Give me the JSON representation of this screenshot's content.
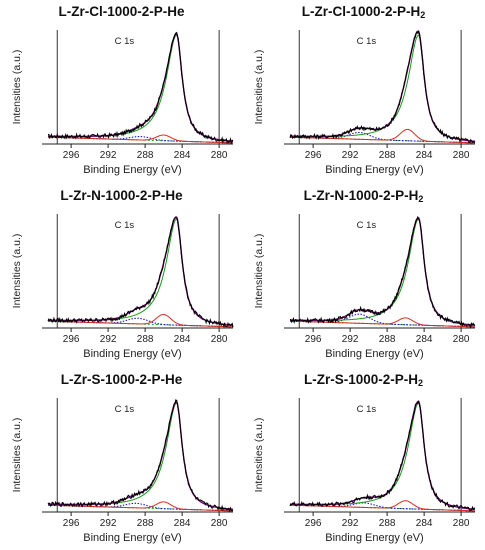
{
  "chart_data": [
    {
      "type": "line",
      "title_main": "L-Zr-Cl-1000-2-P-He",
      "title_sub": "",
      "peak_label": "C 1s",
      "xlabel": "Binding Energy (eV)",
      "ylabel": "Intensities (a.u.)",
      "xticks": [
        296,
        292,
        288,
        284,
        280
      ],
      "xlim": [
        298.5,
        278.5
      ],
      "x_reversed": true,
      "vlines": [
        297.5,
        280
      ],
      "main_peak": {
        "center": 284.6,
        "height": 0.93
      },
      "satellite_peak": {
        "center": 288.5,
        "height": 0.03
      },
      "shoulder_peak": {
        "center": 286.0,
        "height": 0.05
      },
      "background_level": 0.05,
      "series": [
        {
          "name": "",
          "color": "#000000"
        },
        {
          "name": "",
          "color": "#800080"
        },
        {
          "name": "",
          "color": "#d62d20"
        },
        {
          "name": "",
          "color": "#1a9a1a"
        },
        {
          "name": "",
          "color": "#1a1ad6"
        }
      ]
    },
    {
      "type": "line",
      "title_main": "L-Zr-Cl-1000-2-P-H",
      "title_sub": "2",
      "peak_label": "C 1s",
      "xlabel": "Binding Energy (eV)",
      "ylabel": "Intensities (a.u.)",
      "xticks": [
        296,
        292,
        288,
        284,
        280
      ],
      "xlim": [
        298.5,
        278.5
      ],
      "x_reversed": true,
      "vlines": [
        297.5,
        280
      ],
      "main_peak": {
        "center": 284.6,
        "height": 0.93
      },
      "satellite_peak": {
        "center": 291.0,
        "height": 0.06
      },
      "shoulder_peak": {
        "center": 285.8,
        "height": 0.1
      },
      "background_level": 0.05,
      "series": [
        {
          "name": "",
          "color": "#000000"
        },
        {
          "name": "",
          "color": "#800080"
        },
        {
          "name": "",
          "color": "#d62d20"
        },
        {
          "name": "",
          "color": "#1a9a1a"
        },
        {
          "name": "",
          "color": "#1a1ad6"
        }
      ]
    },
    {
      "type": "line",
      "title_main": "L-Zr-N-1000-2-P-He",
      "title_sub": "",
      "peak_label": "C 1s",
      "xlabel": "Binding Energy (eV)",
      "ylabel": "Intensities (a.u.)",
      "xticks": [
        296,
        292,
        288,
        284,
        280
      ],
      "xlim": [
        298.5,
        278.5
      ],
      "x_reversed": true,
      "vlines": [
        297.5,
        280
      ],
      "main_peak": {
        "center": 284.6,
        "height": 0.93
      },
      "satellite_peak": {
        "center": 288.8,
        "height": 0.05
      },
      "shoulder_peak": {
        "center": 286.0,
        "height": 0.09
      },
      "background_level": 0.05,
      "series": [
        {
          "name": "",
          "color": "#000000"
        },
        {
          "name": "",
          "color": "#800080"
        },
        {
          "name": "",
          "color": "#d62d20"
        },
        {
          "name": "",
          "color": "#1a9a1a"
        },
        {
          "name": "",
          "color": "#1a1ad6"
        }
      ]
    },
    {
      "type": "line",
      "title_main": "L-Zr-N-1000-2-P-H",
      "title_sub": "2",
      "peak_label": "C 1s",
      "xlabel": "Binding Energy (eV)",
      "ylabel": "Intensities (a.u.)",
      "xticks": [
        296,
        292,
        288,
        284,
        280
      ],
      "xlim": [
        298.5,
        278.5
      ],
      "x_reversed": true,
      "vlines": [
        297.5,
        280
      ],
      "main_peak": {
        "center": 284.6,
        "height": 0.93
      },
      "satellite_peak": {
        "center": 291.0,
        "height": 0.08
      },
      "shoulder_peak": {
        "center": 286.0,
        "height": 0.06
      },
      "background_level": 0.05,
      "series": [
        {
          "name": "",
          "color": "#000000"
        },
        {
          "name": "",
          "color": "#800080"
        },
        {
          "name": "",
          "color": "#d62d20"
        },
        {
          "name": "",
          "color": "#1a9a1a"
        },
        {
          "name": "",
          "color": "#1a1ad6"
        }
      ]
    },
    {
      "type": "line",
      "title_main": "L-Zr-S-1000-2-P-He",
      "title_sub": "",
      "peak_label": "C 1s",
      "xlabel": "Binding Energy (eV)",
      "ylabel": "Intensities (a.u.)",
      "xticks": [
        296,
        292,
        288,
        284,
        280
      ],
      "xlim": [
        298.5,
        278.5
      ],
      "x_reversed": true,
      "vlines": [
        297.5,
        280
      ],
      "main_peak": {
        "center": 284.6,
        "height": 0.93
      },
      "satellite_peak": {
        "center": 289.0,
        "height": 0.04
      },
      "shoulder_peak": {
        "center": 286.0,
        "height": 0.06
      },
      "background_level": 0.05,
      "series": [
        {
          "name": "",
          "color": "#000000"
        },
        {
          "name": "",
          "color": "#800080"
        },
        {
          "name": "",
          "color": "#d62d20"
        },
        {
          "name": "",
          "color": "#1a9a1a"
        },
        {
          "name": "",
          "color": "#1a1ad6"
        }
      ]
    },
    {
      "type": "line",
      "title_main": "L-Zr-S-1000-2-P-H",
      "title_sub": "2",
      "peak_label": "C 1s",
      "xlabel": "Binding Energy (eV)",
      "ylabel": "Intensities (a.u.)",
      "xticks": [
        296,
        292,
        288,
        284,
        280
      ],
      "xlim": [
        298.5,
        278.5
      ],
      "x_reversed": true,
      "vlines": [
        297.5,
        280
      ],
      "main_peak": {
        "center": 284.6,
        "height": 0.93
      },
      "satellite_peak": {
        "center": 290.5,
        "height": 0.04
      },
      "shoulder_peak": {
        "center": 286.0,
        "height": 0.07
      },
      "background_level": 0.05,
      "series": [
        {
          "name": "",
          "color": "#000000"
        },
        {
          "name": "",
          "color": "#800080"
        },
        {
          "name": "",
          "color": "#d62d20"
        },
        {
          "name": "",
          "color": "#1a9a1a"
        },
        {
          "name": "",
          "color": "#1a1ad6"
        }
      ]
    }
  ]
}
